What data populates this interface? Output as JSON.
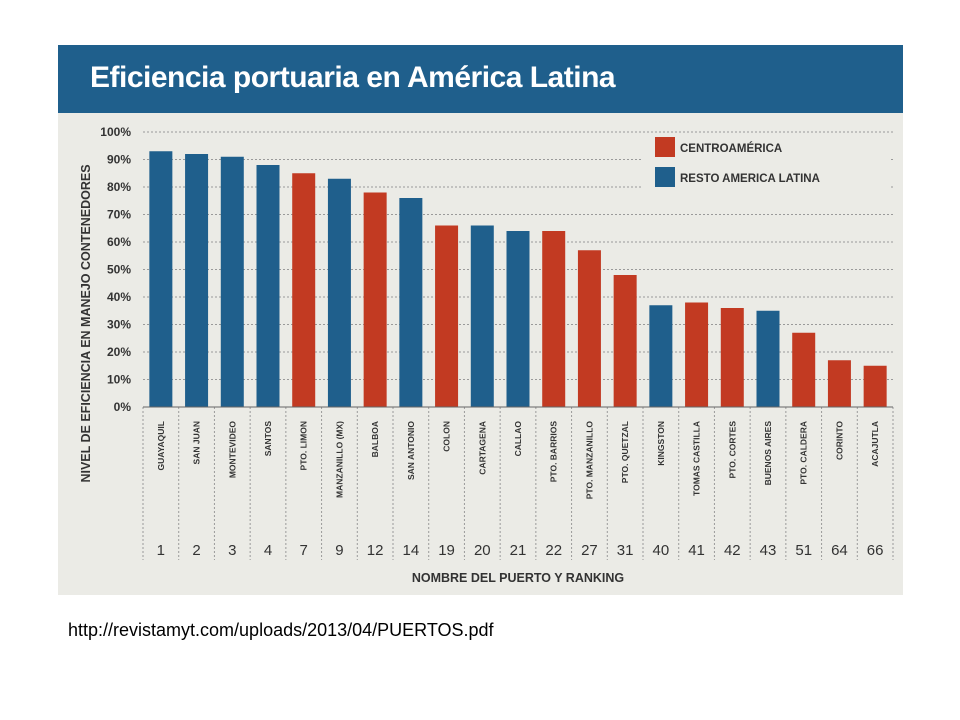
{
  "chart_data": {
    "type": "bar",
    "title": "Eficiencia portuaria en América Latina",
    "xlabel": "NOMBRE DEL PUERTO Y RANKING",
    "ylabel": "NIVEL DE EFICIENCIA EN MANEJO CONTENEDORES",
    "ylim": [
      0,
      100
    ],
    "yticks": [
      "0%",
      "10%",
      "20%",
      "30%",
      "40%",
      "50%",
      "60%",
      "70%",
      "80%",
      "90%",
      "100%"
    ],
    "legend_position": "top-right",
    "legend": [
      {
        "name": "CENTROAMÉRICA",
        "color": "#c23a22"
      },
      {
        "name": "RESTO AMERICA LATINA",
        "color": "#1f5f8c"
      }
    ],
    "categories": [
      "GUAYAQUIL",
      "SAN JUAN",
      "MONTEVIDEO",
      "SANTOS",
      "PTO. LIMON",
      "MANZANILLO (MX)",
      "BALBOA",
      "SAN ANTONIO",
      "COLON",
      "CARTAGENA",
      "CALLAO",
      "PTO. BARRIOS",
      "PTO. MANZANILLO",
      "PTO. QUETZAL",
      "KINGSTON",
      "TOMAS CASTILLA",
      "PTO. CORTES",
      "BUENOS AIRES",
      "PTO. CALDERA",
      "CORINTO",
      "ACAJUTLA"
    ],
    "rankings": [
      "1",
      "2",
      "3",
      "4",
      "7",
      "9",
      "12",
      "14",
      "19",
      "20",
      "21",
      "22",
      "27",
      "31",
      "40",
      "41",
      "42",
      "43",
      "51",
      "64",
      "66"
    ],
    "values": [
      93,
      92,
      91,
      88,
      85,
      83,
      78,
      76,
      66,
      66,
      64,
      64,
      57,
      48,
      37,
      38,
      36,
      35,
      27,
      17,
      15
    ],
    "region": [
      "RESTO AMERICA LATINA",
      "RESTO AMERICA LATINA",
      "RESTO AMERICA LATINA",
      "RESTO AMERICA LATINA",
      "CENTROAMÉRICA",
      "RESTO AMERICA LATINA",
      "CENTROAMÉRICA",
      "RESTO AMERICA LATINA",
      "CENTROAMÉRICA",
      "RESTO AMERICA LATINA",
      "RESTO AMERICA LATINA",
      "CENTROAMÉRICA",
      "CENTROAMÉRICA",
      "CENTROAMÉRICA",
      "RESTO AMERICA LATINA",
      "CENTROAMÉRICA",
      "CENTROAMÉRICA",
      "RESTO AMERICA LATINA",
      "CENTROAMÉRICA",
      "CENTROAMÉRICA",
      "CENTROAMÉRICA"
    ],
    "grid": true
  },
  "source_text": "http://revistamyt.com/uploads/2013/04/PUERTOS.pdf"
}
